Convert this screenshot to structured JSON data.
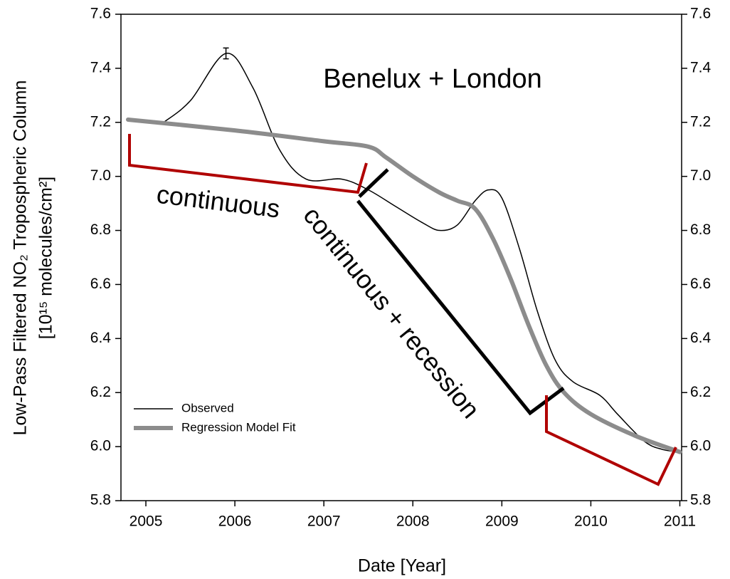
{
  "chart_data": {
    "type": "line",
    "title": "Benelux + London",
    "xlabel": "Date [Year]",
    "ylabel": [
      "Low-Pass Filtered  NO₂ Tropospheric Column",
      "[10¹⁵ molecules/cm²]"
    ],
    "annotations": [
      "continuous",
      "continuous + recession"
    ],
    "xlim": [
      2004.72,
      2011.02
    ],
    "xticks": [
      2005,
      2006,
      2007,
      2008,
      2009,
      2010,
      2011
    ],
    "ylim": [
      5.8,
      7.6
    ],
    "yticks": [
      {
        "value": 5.8,
        "label": "5.8"
      },
      {
        "value": 6.0,
        "label": "6.0"
      },
      {
        "value": 6.2,
        "label": "6.2"
      },
      {
        "value": 6.4,
        "label": "6.4"
      },
      {
        "value": 6.6,
        "label": "6.6"
      },
      {
        "value": 6.8,
        "label": "6.8"
      },
      {
        "value": 7.0,
        "label": "7.0"
      },
      {
        "value": 7.2,
        "label": "7.2"
      },
      {
        "value": 7.4,
        "label": "7.4"
      },
      {
        "value": 7.6,
        "label": "7.6"
      }
    ],
    "y2lim": [
      5.8,
      7.6
    ],
    "y2ticks": [
      {
        "value": 5.8,
        "label": "5.8"
      },
      {
        "value": 6.0,
        "label": "6.0"
      },
      {
        "value": 6.2,
        "label": "6.2"
      },
      {
        "value": 6.4,
        "label": "6.4"
      },
      {
        "value": 6.6,
        "label": "6.6"
      },
      {
        "value": 6.8,
        "label": "6.8"
      },
      {
        "value": 7.0,
        "label": "7.0"
      },
      {
        "value": 7.2,
        "label": "7.2"
      },
      {
        "value": 7.4,
        "label": "7.4"
      },
      {
        "value": 7.6,
        "label": "7.6"
      }
    ],
    "legend": "lower left",
    "series": [
      {
        "name": "Observed",
        "color": "#000000",
        "width": 1.5,
        "x": [
          2005.2,
          2005.5,
          2005.9,
          2006.2,
          2006.5,
          2006.8,
          2007.2,
          2007.5,
          2007.8,
          2008.1,
          2008.3,
          2008.5,
          2008.7,
          2008.85,
          2009.0,
          2009.2,
          2009.4,
          2009.6,
          2009.8,
          2010.1,
          2010.3,
          2010.6,
          2010.8,
          2011.0
        ],
        "values": [
          7.2,
          7.28,
          7.455,
          7.33,
          7.1,
          6.99,
          6.99,
          6.95,
          6.89,
          6.83,
          6.8,
          6.82,
          6.91,
          6.95,
          6.92,
          6.73,
          6.5,
          6.32,
          6.24,
          6.19,
          6.12,
          6.02,
          5.99,
          5.98
        ],
        "error": {
          "x": 2005.9,
          "value": 7.455,
          "err": 0.02
        }
      },
      {
        "name": "Regression Model Fit",
        "color": "#8c8c8c",
        "width": 6,
        "x": [
          2004.8,
          2006.0,
          2007.0,
          2007.5,
          2007.7,
          2008.0,
          2008.3,
          2008.5,
          2008.7,
          2008.9,
          2009.1,
          2009.3,
          2009.5,
          2009.7,
          2010.0,
          2010.5,
          2011.0
        ],
        "values": [
          7.21,
          7.17,
          7.13,
          7.11,
          7.07,
          7.0,
          6.94,
          6.91,
          6.88,
          6.77,
          6.62,
          6.45,
          6.3,
          6.2,
          6.12,
          6.04,
          5.98
        ]
      }
    ]
  }
}
